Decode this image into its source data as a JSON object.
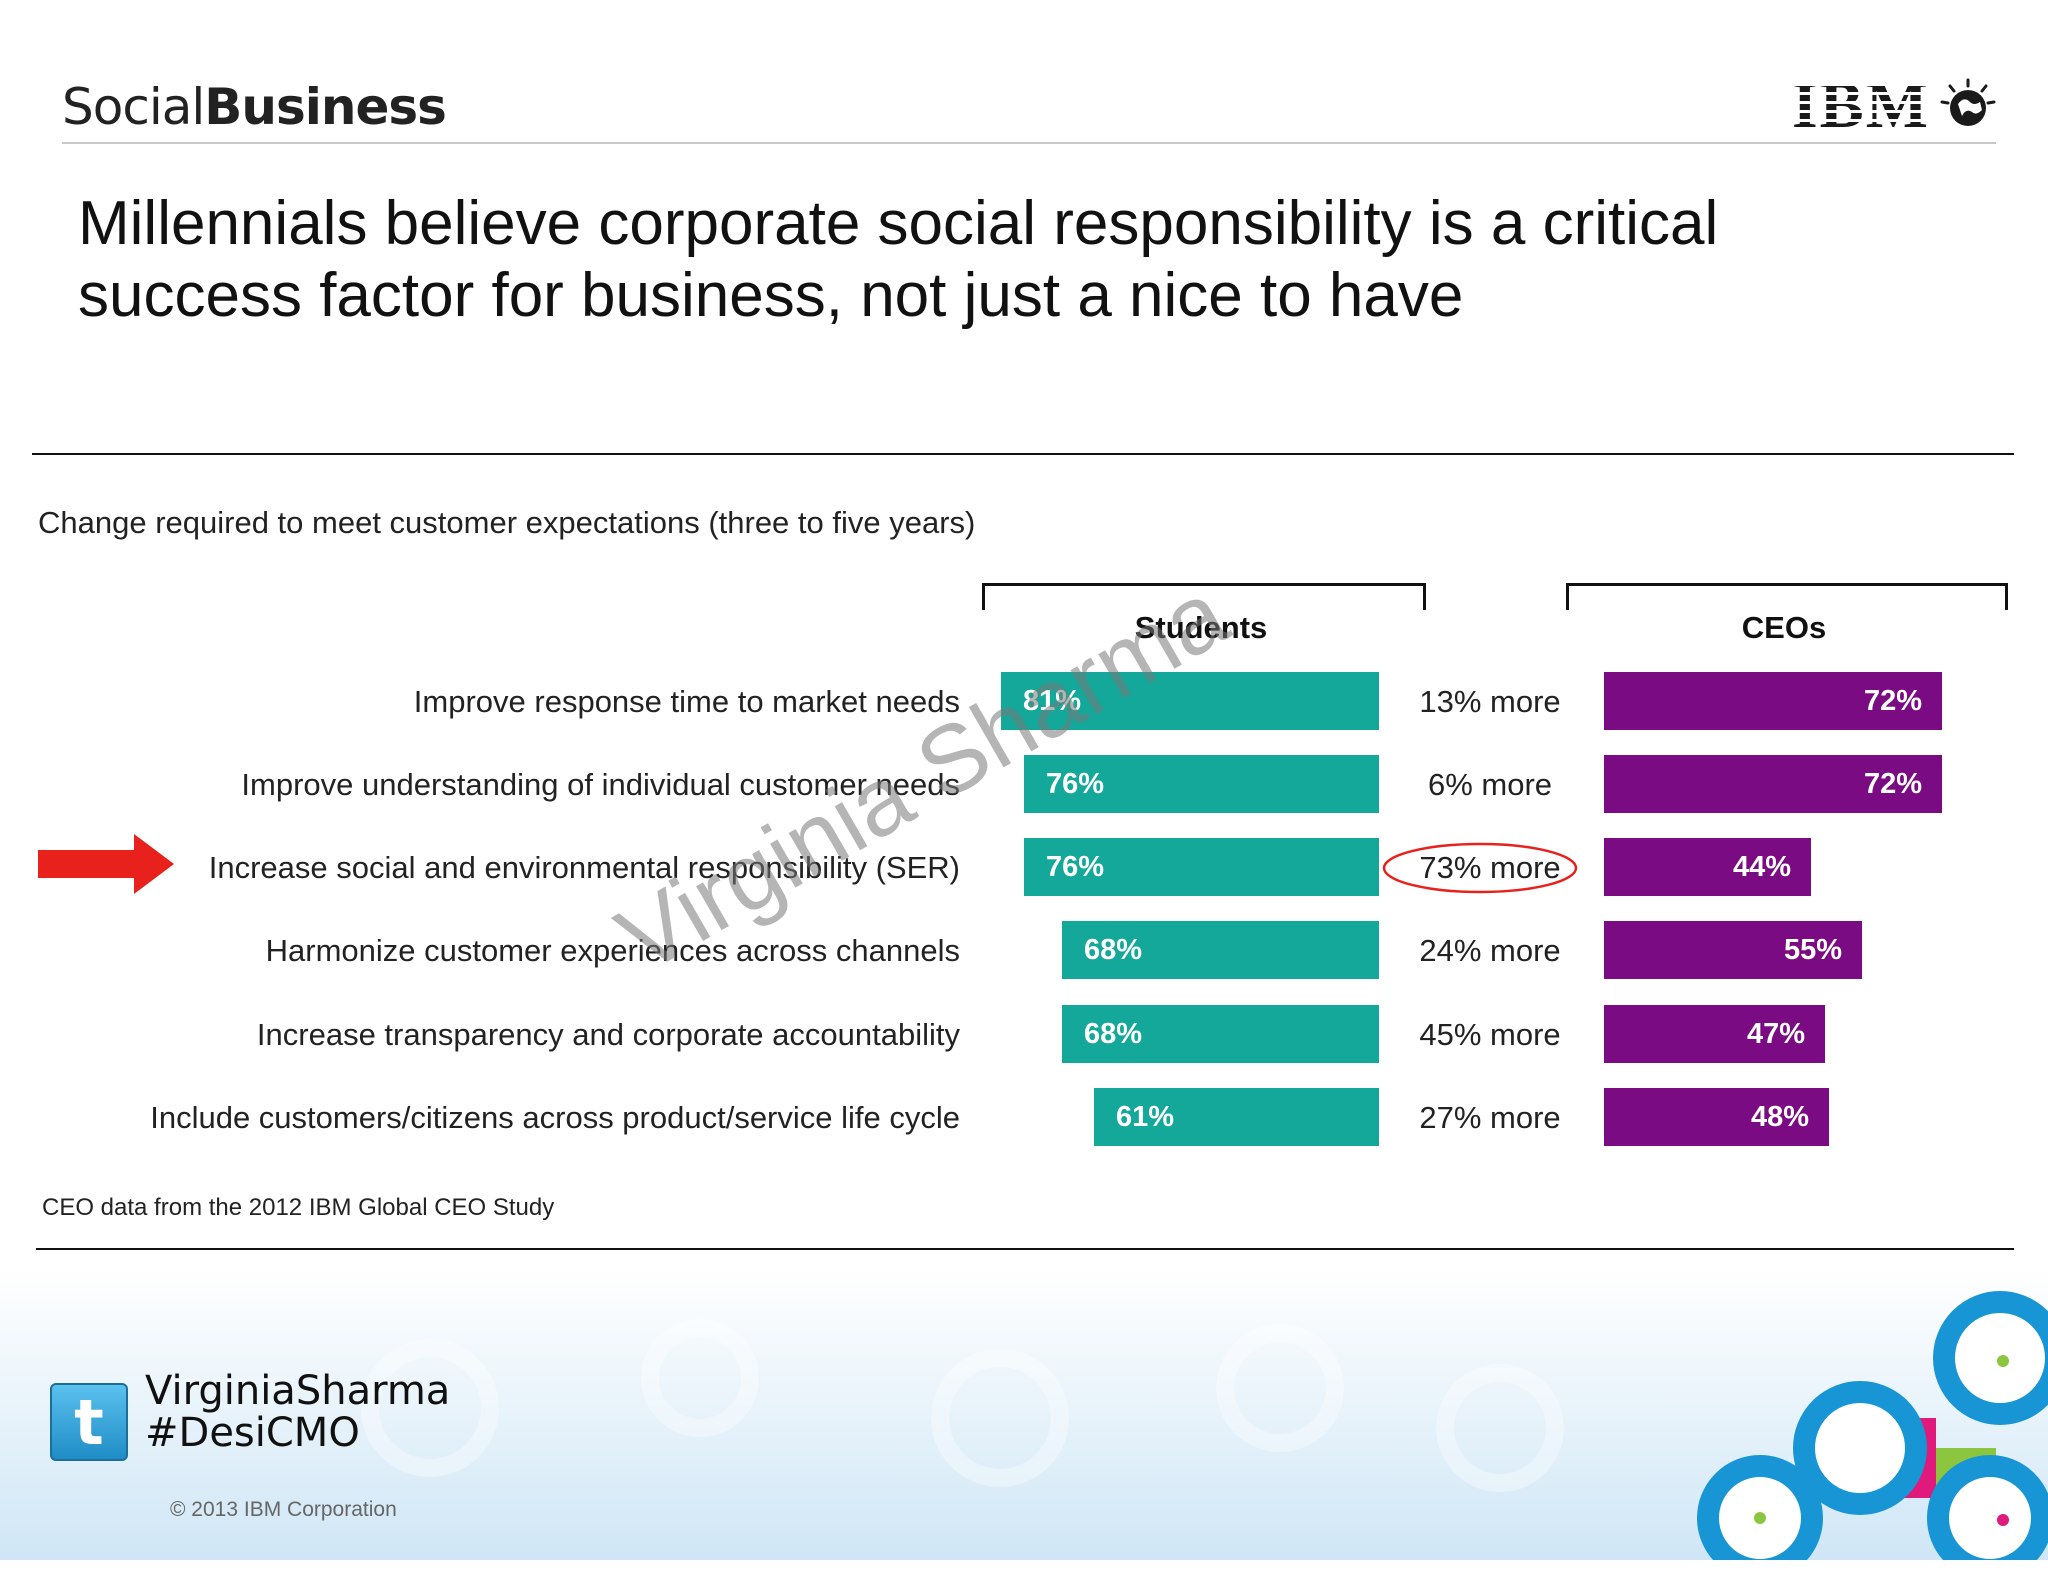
{
  "header": {
    "brand_light": "Social",
    "brand_bold": "Business",
    "logo_text": "IBM",
    "logo_icon": "globe-icon"
  },
  "slide": {
    "title": "Millennials believe corporate social responsibility is a critical success factor for business, not just a nice to have"
  },
  "chart_data": {
    "type": "bar",
    "title": "Change required to meet customer expectations (three to five years)",
    "categories": [
      "Improve response time to market needs",
      "Improve understanding of individual customer needs",
      "Increase social and environmental responsibility (SER)",
      "Harmonize customer experiences across channels",
      "Increase transparency and corporate accountability",
      "Include customers/citizens across product/service life cycle"
    ],
    "series": [
      {
        "name": "Students",
        "values": [
          81,
          76,
          76,
          68,
          68,
          61
        ],
        "labels": [
          "81%",
          "76%",
          "76%",
          "68%",
          "68%",
          "61%"
        ],
        "color": "#14a89a"
      },
      {
        "name": "CEOs",
        "values": [
          72,
          72,
          44,
          55,
          47,
          48
        ],
        "labels": [
          "72%",
          "72%",
          "44%",
          "55%",
          "47%",
          "48%"
        ],
        "color": "#7b0b82"
      }
    ],
    "differences": [
      "13% more",
      "6% more",
      "73% more",
      "24% more",
      "45% more",
      "27% more"
    ],
    "highlighted_index": 2,
    "highlight_color": "#e8211c",
    "source": "CEO data from the 2012 IBM Global CEO Study"
  },
  "watermark": "Virginia Sharma",
  "footer": {
    "twitter_icon": "twitter-icon",
    "handle_line1": "VirginiaSharma",
    "handle_line2": "#DesiCMO",
    "copyright": "© 2013 IBM Corporation"
  }
}
